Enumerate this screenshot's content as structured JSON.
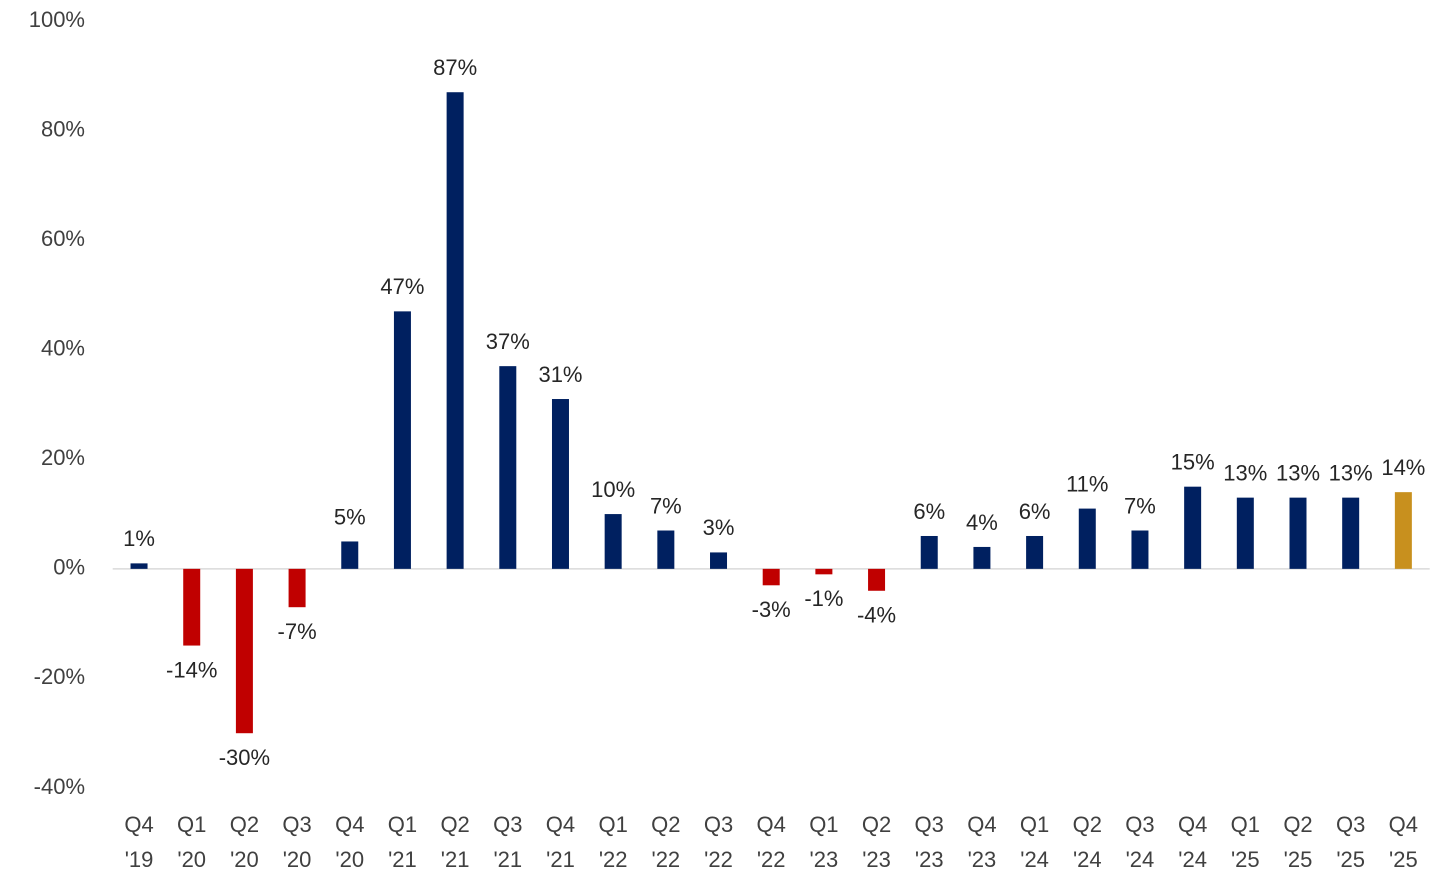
{
  "chart_data": {
    "type": "bar",
    "categories": [
      "Q4 '19",
      "Q1 '20",
      "Q2 '20",
      "Q3 '20",
      "Q4 '20",
      "Q1 '21",
      "Q2 '21",
      "Q3 '21",
      "Q4 '21",
      "Q1 '22",
      "Q2 '22",
      "Q3 '22",
      "Q4 '22",
      "Q1 '23",
      "Q2 '23",
      "Q3 '23",
      "Q4 '23",
      "Q1 '24",
      "Q2 '24",
      "Q3 '24",
      "Q4 '24",
      "Q1 '25",
      "Q2 '25",
      "Q3 '25",
      "Q4 '25"
    ],
    "values": [
      1,
      -14,
      -30,
      -7,
      5,
      47,
      87,
      37,
      31,
      10,
      7,
      3,
      -3,
      -1,
      -4,
      6,
      4,
      6,
      11,
      7,
      15,
      13,
      13,
      13,
      14
    ],
    "value_labels": [
      "1%",
      "-14%",
      "-30%",
      "-7%",
      "5%",
      "47%",
      "87%",
      "37%",
      "31%",
      "10%",
      "7%",
      "3%",
      "-3%",
      "-1%",
      "-4%",
      "6%",
      "4%",
      "6%",
      "11%",
      "7%",
      "15%",
      "13%",
      "13%",
      "13%",
      "14%"
    ],
    "colors": [
      "#002060",
      "#c00000",
      "#c00000",
      "#c00000",
      "#002060",
      "#002060",
      "#002060",
      "#002060",
      "#002060",
      "#002060",
      "#002060",
      "#002060",
      "#c00000",
      "#c00000",
      "#c00000",
      "#002060",
      "#002060",
      "#002060",
      "#002060",
      "#002060",
      "#002060",
      "#002060",
      "#002060",
      "#002060",
      "#c8901e"
    ],
    "ylim": [
      -40,
      100
    ],
    "yticks": [
      {
        "value": -40,
        "label": "-40%"
      },
      {
        "value": -20,
        "label": "-20%"
      },
      {
        "value": 0,
        "label": "0%"
      },
      {
        "value": 20,
        "label": "20%"
      },
      {
        "value": 40,
        "label": "40%"
      },
      {
        "value": 60,
        "label": "60%"
      },
      {
        "value": 80,
        "label": "80%"
      },
      {
        "value": 100,
        "label": "100%"
      }
    ],
    "grid": false
  }
}
